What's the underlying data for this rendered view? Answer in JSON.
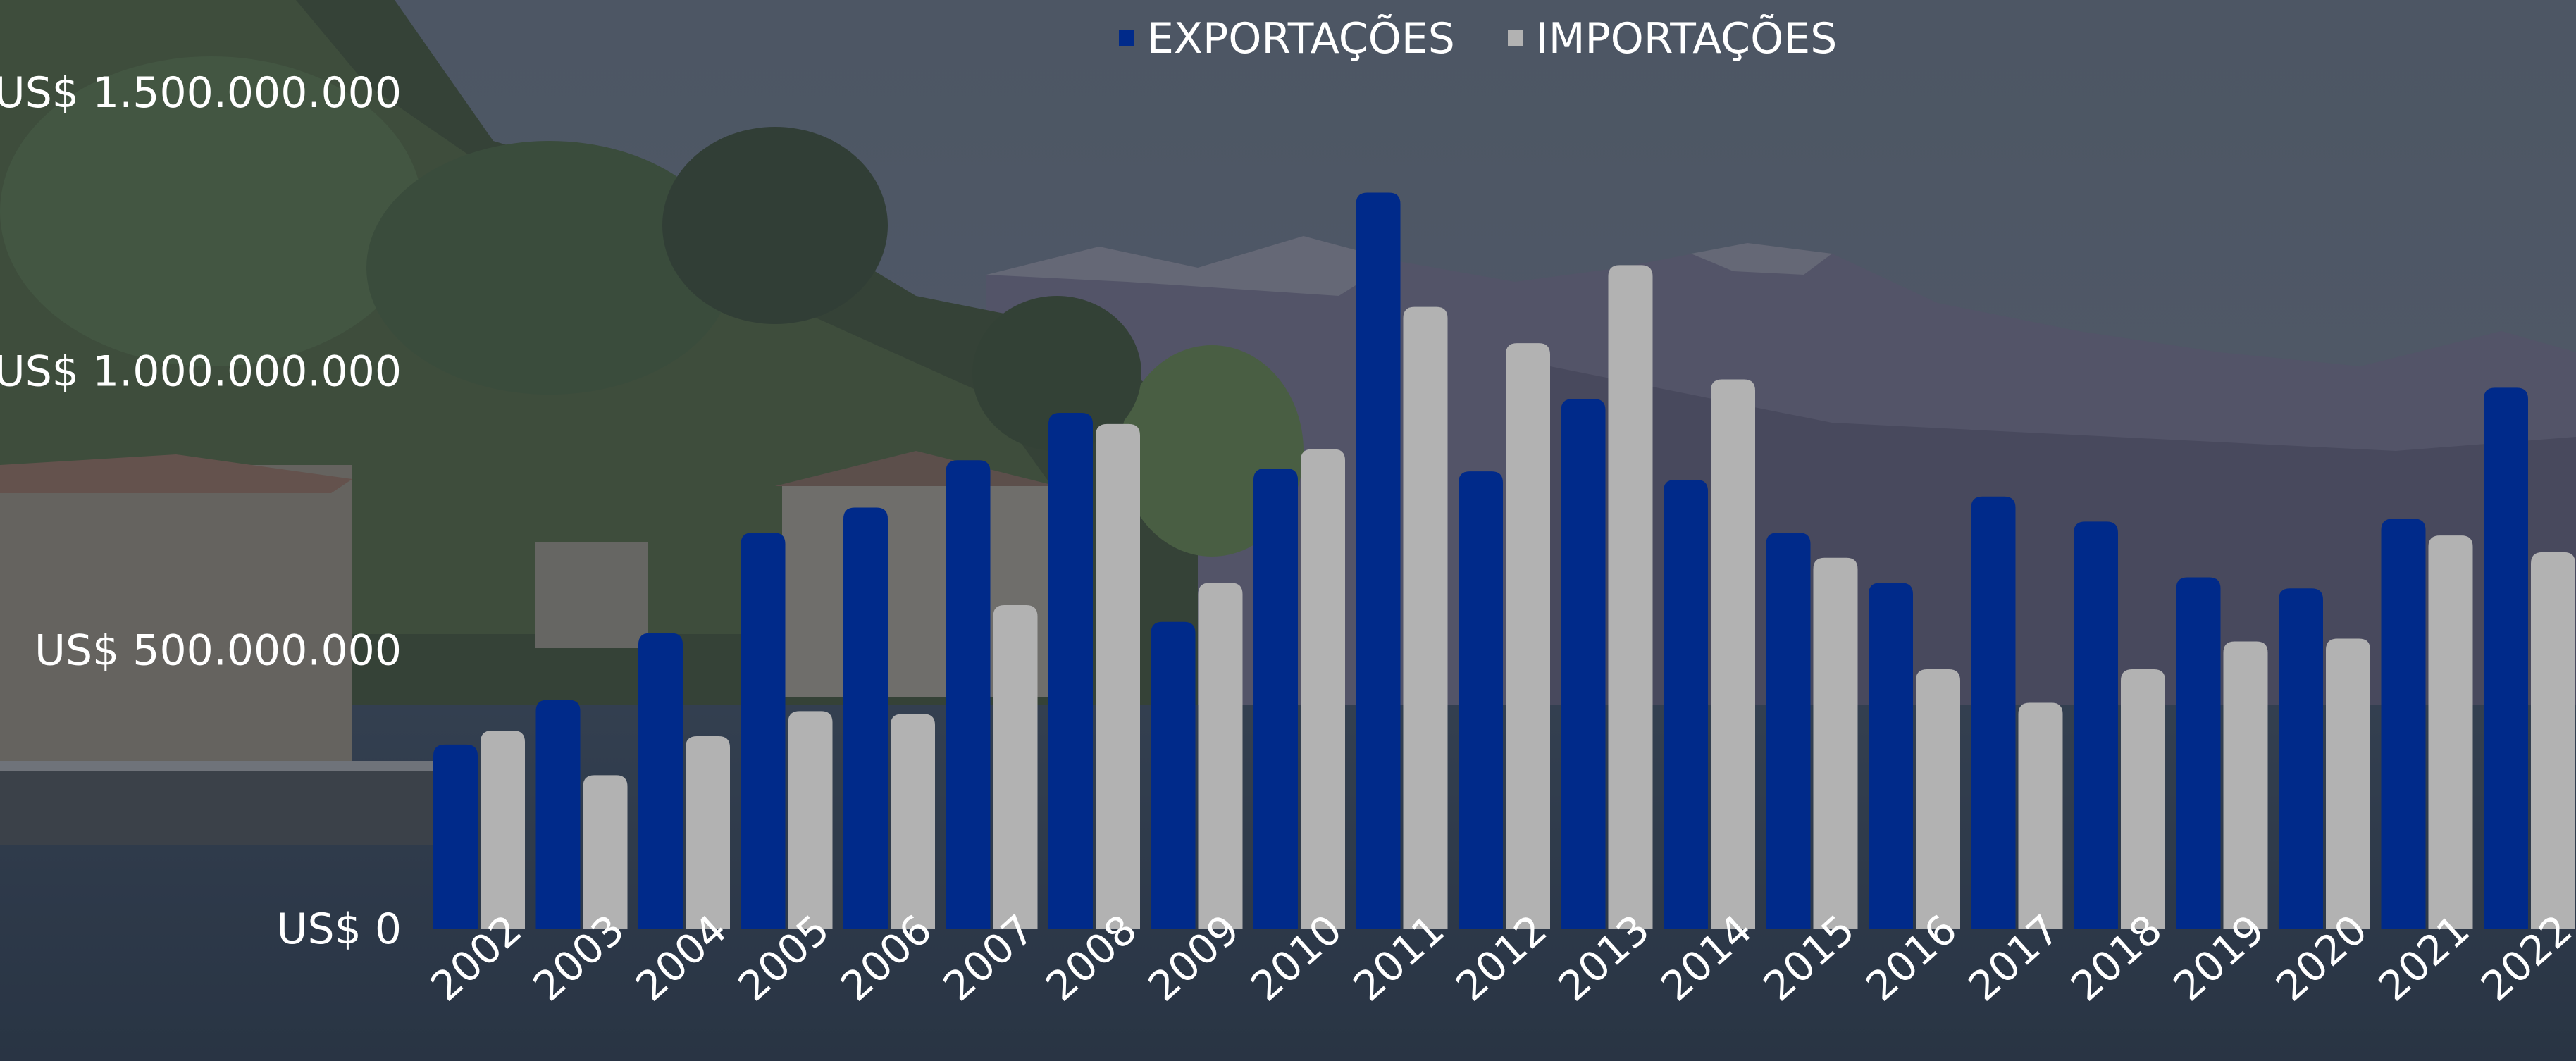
{
  "colors": {
    "exports": "#002a8a",
    "imports": "#b2b2b2",
    "text": "#ffffff",
    "overlay": "#4a5360"
  },
  "chart_data": {
    "type": "bar",
    "title": "",
    "xlabel": "",
    "ylabel": "",
    "categories": [
      "2002",
      "2003",
      "2004",
      "2005",
      "2006",
      "2007",
      "2008",
      "2009",
      "2010",
      "2011",
      "2012",
      "2013",
      "2014",
      "2015",
      "2016",
      "2017",
      "2018",
      "2019",
      "2020",
      "2021",
      "2022"
    ],
    "series": [
      {
        "name": "EXPORTAÇÕES",
        "values": [
          330000000,
          410000000,
          530000000,
          710000000,
          755000000,
          840000000,
          925000000,
          550000000,
          825000000,
          1320000000,
          820000000,
          950000000,
          805000000,
          710000000,
          620000000,
          775000000,
          730000000,
          630000000,
          610000000,
          735000000,
          970000000
        ]
      },
      {
        "name": "IMPORTAÇÕES",
        "values": [
          355000000,
          275000000,
          345000000,
          390000000,
          385000000,
          580000000,
          905000000,
          620000000,
          860000000,
          1115000000,
          1050000000,
          1190000000,
          985000000,
          665000000,
          465000000,
          405000000,
          465000000,
          515000000,
          520000000,
          705000000,
          675000000
        ]
      }
    ],
    "ylim": [
      0,
      1500000000
    ],
    "y_ticks": [
      {
        "value": 0,
        "label": "US$ 0"
      },
      {
        "value": 500000000,
        "label": "US$ 500.000.000"
      },
      {
        "value": 1000000000,
        "label": "US$ 1.000.000.000"
      },
      {
        "value": 1500000000,
        "label": "US$ 1.500.000.000"
      }
    ],
    "grid": false,
    "legend": "top-center"
  }
}
